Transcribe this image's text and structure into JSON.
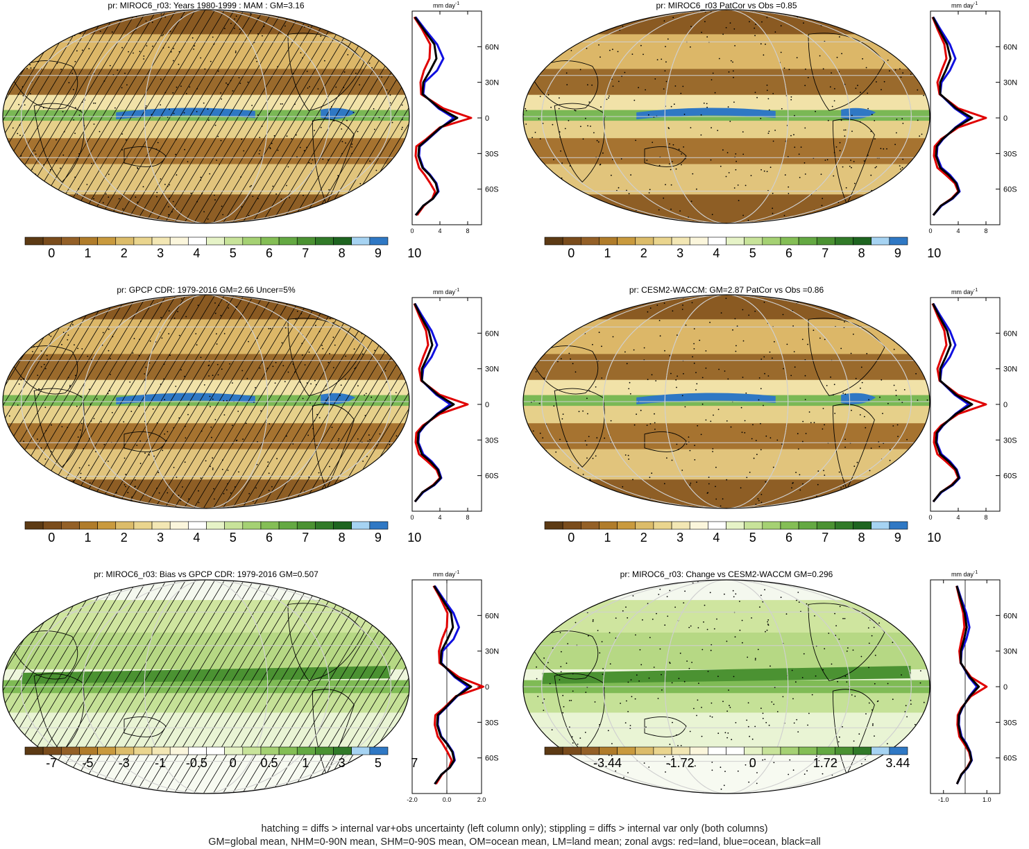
{
  "panels": [
    {
      "id": "p1",
      "title": "pr: MIROC6_r03: Years 1980-1999 : MAM : GM=3.16",
      "colorbar": [
        "0",
        "1",
        "2",
        "3",
        "4",
        "5",
        "6",
        "7",
        "8",
        "9",
        "10"
      ],
      "hatch": true,
      "stipple": true,
      "zonal_xticks": [
        "0",
        "4",
        "8"
      ]
    },
    {
      "id": "p2",
      "title": "pr: MIROC6_r03 PatCor vs Obs =0.85",
      "colorbar": [
        "0",
        "1",
        "2",
        "3",
        "4",
        "5",
        "6",
        "7",
        "8",
        "9",
        "10"
      ],
      "hatch": false,
      "stipple": true,
      "zonal_xticks": [
        "0",
        "4",
        "8"
      ]
    },
    {
      "id": "p3",
      "title": "pr: GPCP CDR: 1979-2016 GM=2.66 Uncer=5%",
      "colorbar": [
        "0",
        "1",
        "2",
        "3",
        "4",
        "5",
        "6",
        "7",
        "8",
        "9",
        "10"
      ],
      "hatch": true,
      "stipple": true,
      "zonal_xticks": [
        "0",
        "4",
        "8"
      ]
    },
    {
      "id": "p4",
      "title": "pr: CESM2-WACCM: GM=2.87 PatCor vs Obs =0.86",
      "colorbar": [
        "0",
        "1",
        "2",
        "3",
        "4",
        "5",
        "6",
        "7",
        "8",
        "9",
        "10"
      ],
      "hatch": false,
      "stipple": true,
      "zonal_xticks": [
        "0",
        "4",
        "8"
      ]
    },
    {
      "id": "p5",
      "title": "pr: MIROC6_r03: Bias vs GPCP CDR: 1979-2016 GM=0.507",
      "colorbar": [
        "-7",
        "-5",
        "-3",
        "-1",
        "-0.5",
        "0",
        "0.5",
        "1",
        "3",
        "5",
        "7"
      ],
      "hatch": true,
      "stipple": false,
      "zonal_xticks": [
        "-2.0",
        "0.0",
        "2.0"
      ]
    },
    {
      "id": "p6",
      "title": "pr: MIROC6_r03: Change vs CESM2-WACCM GM=0.296",
      "colorbar": [
        "-3.44",
        "-1.72",
        "0",
        "1.72",
        "3.44"
      ],
      "hatch": false,
      "stipple": true,
      "zonal_xticks": [
        "-1.0",
        "1.0"
      ]
    }
  ],
  "zonal_units": "mm day",
  "zonal_units_sup": "-1",
  "lat_ticks": [
    "60N",
    "30N",
    "0",
    "30S",
    "60S"
  ],
  "colors": {
    "seq": [
      "#5c3a14",
      "#7a4c1c",
      "#946027",
      "#b07c2a",
      "#c99a3e",
      "#dcbc6a",
      "#ead58e",
      "#f3e7b4",
      "#fbf6dc",
      "#ffffff",
      "#e6f3c7",
      "#c8e39a",
      "#a5d173",
      "#84be55",
      "#64a942",
      "#4b9232",
      "#317a28",
      "#1e6420",
      "#a6d3f2",
      "#2f78c4"
    ],
    "div": [
      "#5c3a14",
      "#7a4c1c",
      "#946027",
      "#b07c2a",
      "#c99a3e",
      "#dcbc6a",
      "#ead58e",
      "#f3e7b4",
      "#fbf6dc",
      "#ffffff",
      "#ffffff",
      "#e6f3c7",
      "#c8e39a",
      "#a5d173",
      "#84be55",
      "#64a942",
      "#4b9232",
      "#317a28",
      "#a6d3f2",
      "#2f78c4"
    ],
    "land": "#e00000",
    "ocean": "#1010e0",
    "all": "#000000"
  },
  "chart_data": [
    {
      "type": "area",
      "panel": "p1",
      "series": [
        {
          "name": "land",
          "x": [
            0.3,
            1.4,
            2.6,
            2.5,
            1.7,
            1.2,
            1.3,
            4.5,
            8.5,
            4.0,
            2.0,
            0.6,
            0.5,
            1.0,
            1.8,
            2.6,
            3.3,
            2.9,
            1.7,
            0.7
          ],
          "y": [
            85,
            75,
            62,
            50,
            40,
            30,
            20,
            8,
            0,
            -8,
            -18,
            -24,
            -32,
            -42,
            -48,
            -55,
            -62,
            -68,
            -74,
            -82
          ]
        },
        {
          "name": "ocean",
          "x": [
            0.5,
            1.8,
            3.6,
            4.5,
            3.6,
            1.8,
            1.6,
            3.8,
            6.0,
            4.2,
            2.3,
            1.1,
            1.0,
            1.6,
            2.6,
            3.5,
            3.8,
            3.0,
            1.6,
            0.5
          ],
          "y": [
            85,
            75,
            62,
            50,
            40,
            30,
            20,
            8,
            0,
            -8,
            -18,
            -24,
            -32,
            -42,
            -48,
            -55,
            -62,
            -68,
            -74,
            -82
          ]
        },
        {
          "name": "all",
          "x": [
            0.4,
            1.6,
            3.2,
            3.5,
            2.6,
            1.6,
            1.5,
            4.0,
            6.5,
            4.1,
            2.2,
            1.0,
            0.9,
            1.5,
            2.5,
            3.4,
            3.7,
            3.0,
            1.6,
            0.5
          ],
          "y": [
            85,
            75,
            62,
            50,
            40,
            30,
            20,
            8,
            0,
            -8,
            -18,
            -24,
            -32,
            -42,
            -48,
            -55,
            -62,
            -68,
            -74,
            -82
          ]
        }
      ]
    },
    {
      "type": "area",
      "panel": "p3",
      "series": [
        {
          "name": "land",
          "x": [
            0.3,
            1.0,
            2.0,
            2.3,
            1.6,
            1.0,
            1.3,
            4.0,
            8.0,
            4.0,
            1.5,
            0.6,
            0.5,
            1.0,
            2.2,
            3.5,
            4.0,
            3.0,
            1.5,
            0.4
          ],
          "y": [
            85,
            75,
            62,
            50,
            40,
            30,
            20,
            8,
            0,
            -8,
            -18,
            -24,
            -32,
            -42,
            -48,
            -55,
            -62,
            -68,
            -74,
            -82
          ]
        },
        {
          "name": "ocean",
          "x": [
            0.4,
            1.4,
            2.8,
            3.6,
            2.8,
            1.6,
            1.4,
            3.5,
            5.5,
            3.6,
            1.8,
            1.0,
            0.9,
            1.6,
            2.8,
            3.8,
            4.2,
            3.2,
            1.6,
            0.4
          ],
          "y": [
            85,
            75,
            62,
            50,
            40,
            30,
            20,
            8,
            0,
            -8,
            -18,
            -24,
            -32,
            -42,
            -48,
            -55,
            -62,
            -68,
            -74,
            -82
          ]
        },
        {
          "name": "all",
          "x": [
            0.35,
            1.2,
            2.4,
            2.9,
            2.2,
            1.4,
            1.4,
            3.7,
            6.0,
            3.7,
            1.7,
            0.9,
            0.8,
            1.4,
            2.6,
            3.7,
            4.1,
            3.1,
            1.5,
            0.4
          ],
          "y": [
            85,
            75,
            62,
            50,
            40,
            30,
            20,
            8,
            0,
            -8,
            -18,
            -24,
            -32,
            -42,
            -48,
            -55,
            -62,
            -68,
            -74,
            -82
          ]
        }
      ]
    }
  ],
  "footer": [
    "hatching = diffs > internal var+obs uncertainty (left column only); stippling = diffs > internal var only (both columns)",
    "GM=global mean, NHM=0-90N mean, SHM=0-90S mean, OM=ocean mean, LM=land mean; zonal avgs: red=land, blue=ocean, black=all"
  ]
}
